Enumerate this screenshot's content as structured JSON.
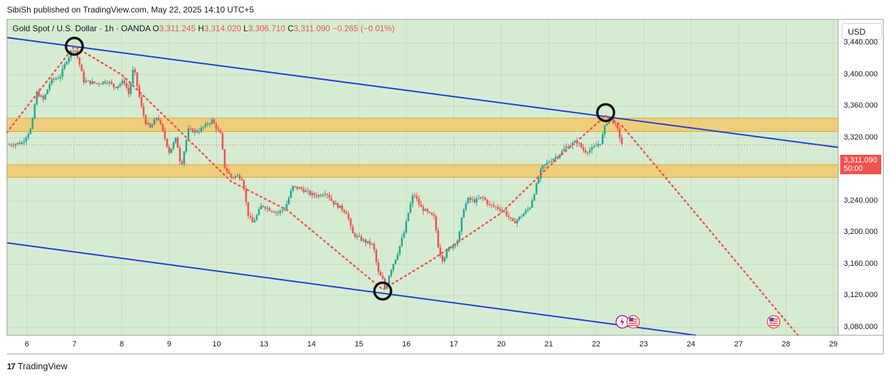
{
  "header": {
    "published_by": "SibiSh published on TradingView.com, May 22, 2025 14:10 UTC+5"
  },
  "symbol": {
    "name": "Gold Spot / U.S. Dollar · 1h · OANDA",
    "open_label": "O",
    "open": "3,311.245",
    "high_label": "H",
    "high": "3,314.020",
    "low_label": "L",
    "low": "3,306.710",
    "close_label": "C",
    "close": "3,311.090",
    "change": "−0.265 (−0.01%)"
  },
  "currency": "USD",
  "price_tag": {
    "price": "3,311.090",
    "countdown": "50:00"
  },
  "footer": {
    "brand": "TradingView"
  },
  "colors": {
    "background": "#d6ecd2",
    "channel_line": "#1e3fd4",
    "zone_fill": "#f2c96b",
    "zone_border": "#e0a63a",
    "bull": "#26a69a",
    "bear": "#ef5350",
    "projection": "#ef5350",
    "marker": "#111111"
  },
  "chart_data": {
    "type": "candlestick",
    "title": "Gold Spot / U.S. Dollar · 1h · OANDA",
    "ylim": [
      3070,
      3470
    ],
    "y_ticks": [
      "3,440.000",
      "3,400.000",
      "3,360.000",
      "3,320.000",
      "3,280.000",
      "3,240.000",
      "3,200.000",
      "3,160.000",
      "3,120.000",
      "3,080.000"
    ],
    "y_tick_values": [
      3440,
      3400,
      3360,
      3320,
      3280,
      3240,
      3200,
      3160,
      3120,
      3080
    ],
    "x_ticks": [
      "6",
      "7",
      "8",
      "9",
      "10",
      "13",
      "14",
      "15",
      "16",
      "17",
      "20",
      "21",
      "22",
      "23",
      "24",
      "27",
      "28",
      "29"
    ],
    "x_tick_index": [
      0,
      1,
      2,
      3,
      4,
      5,
      6,
      7,
      8,
      9,
      10,
      11,
      12,
      13,
      14,
      15,
      16,
      17
    ],
    "x_range": [
      -0.42,
      17.1
    ],
    "last_price": 3311.09,
    "price_path": [
      [
        -0.42,
        3311
      ],
      [
        -0.1,
        3314
      ],
      [
        0.1,
        3333
      ],
      [
        0.2,
        3378
      ],
      [
        0.35,
        3368
      ],
      [
        0.5,
        3392
      ],
      [
        0.7,
        3398
      ],
      [
        0.85,
        3420
      ],
      [
        1.0,
        3435
      ],
      [
        1.1,
        3415
      ],
      [
        1.2,
        3392
      ],
      [
        1.45,
        3389
      ],
      [
        1.7,
        3392
      ],
      [
        1.85,
        3384
      ],
      [
        2.05,
        3392
      ],
      [
        2.15,
        3375
      ],
      [
        2.25,
        3410
      ],
      [
        2.4,
        3362
      ],
      [
        2.5,
        3340
      ],
      [
        2.6,
        3332
      ],
      [
        2.75,
        3348
      ],
      [
        2.95,
        3312
      ],
      [
        3.0,
        3302
      ],
      [
        3.15,
        3320
      ],
      [
        3.25,
        3283
      ],
      [
        3.4,
        3330
      ],
      [
        3.6,
        3328
      ],
      [
        3.75,
        3335
      ],
      [
        3.9,
        3342
      ],
      [
        4.1,
        3322
      ],
      [
        4.15,
        3285
      ],
      [
        4.3,
        3270
      ],
      [
        4.45,
        3272
      ],
      [
        4.55,
        3268
      ],
      [
        4.65,
        3225
      ],
      [
        4.75,
        3212
      ],
      [
        4.85,
        3222
      ],
      [
        4.95,
        3235
      ],
      [
        5.1,
        3230
      ],
      [
        5.3,
        3225
      ],
      [
        5.45,
        3232
      ],
      [
        5.6,
        3258
      ],
      [
        5.8,
        3255
      ],
      [
        6.0,
        3248
      ],
      [
        6.15,
        3247
      ],
      [
        6.3,
        3252
      ],
      [
        6.45,
        3238
      ],
      [
        6.6,
        3232
      ],
      [
        6.75,
        3225
      ],
      [
        6.85,
        3199
      ],
      [
        7.0,
        3193
      ],
      [
        7.15,
        3188
      ],
      [
        7.3,
        3184
      ],
      [
        7.4,
        3150
      ],
      [
        7.5,
        3140
      ],
      [
        7.55,
        3128
      ],
      [
        7.65,
        3150
      ],
      [
        7.8,
        3172
      ],
      [
        7.95,
        3200
      ],
      [
        8.05,
        3228
      ],
      [
        8.15,
        3250
      ],
      [
        8.3,
        3232
      ],
      [
        8.45,
        3225
      ],
      [
        8.6,
        3218
      ],
      [
        8.65,
        3188
      ],
      [
        8.75,
        3165
      ],
      [
        8.9,
        3180
      ],
      [
        9.1,
        3192
      ],
      [
        9.2,
        3230
      ],
      [
        9.3,
        3242
      ],
      [
        9.45,
        3240
      ],
      [
        9.6,
        3245
      ],
      [
        9.75,
        3235
      ],
      [
        9.9,
        3232
      ],
      [
        10.05,
        3228
      ],
      [
        10.25,
        3212
      ],
      [
        10.4,
        3220
      ],
      [
        10.6,
        3232
      ],
      [
        10.75,
        3262
      ],
      [
        10.85,
        3282
      ],
      [
        11.0,
        3290
      ],
      [
        11.2,
        3298
      ],
      [
        11.4,
        3310
      ],
      [
        11.6,
        3315
      ],
      [
        11.75,
        3303
      ],
      [
        11.9,
        3305
      ],
      [
        12.1,
        3315
      ],
      [
        12.2,
        3338
      ],
      [
        12.28,
        3346
      ],
      [
        12.35,
        3342
      ],
      [
        12.45,
        3330
      ],
      [
        12.55,
        3311
      ]
    ],
    "channel_lines": [
      {
        "name": "upper",
        "from": [
          -0.42,
          3447
        ],
        "to": [
          17.1,
          3308
        ]
      },
      {
        "name": "lower",
        "from": [
          -0.42,
          3187
        ],
        "to": [
          14.1,
          3070
        ]
      }
    ],
    "zones": [
      {
        "name": "resistance-zone",
        "y_from": 3328,
        "y_to": 3345
      },
      {
        "name": "support-zone",
        "y_from": 3270,
        "y_to": 3286
      }
    ],
    "zigzag_path": [
      [
        -0.42,
        3327
      ],
      [
        1.0,
        3436
      ],
      [
        2.0,
        3400
      ],
      [
        3.2,
        3330
      ],
      [
        4.3,
        3265
      ],
      [
        5.5,
        3228
      ],
      [
        7.5,
        3128
      ],
      [
        8.5,
        3164
      ],
      [
        10.0,
        3225
      ],
      [
        11.2,
        3295
      ],
      [
        12.2,
        3348
      ],
      [
        12.55,
        3335
      ],
      [
        16.25,
        3070
      ]
    ],
    "circle_markers": [
      [
        1.0,
        3436
      ],
      [
        7.5,
        3126
      ],
      [
        12.2,
        3352
      ]
    ],
    "event_icons": [
      {
        "name": "news-flash-icon",
        "x": 12.55,
        "y": 3087
      },
      {
        "name": "us-flag-icon",
        "x": 12.78,
        "y": 3087
      },
      {
        "name": "us-flag-icon",
        "x": 15.74,
        "y": 3087
      }
    ]
  }
}
